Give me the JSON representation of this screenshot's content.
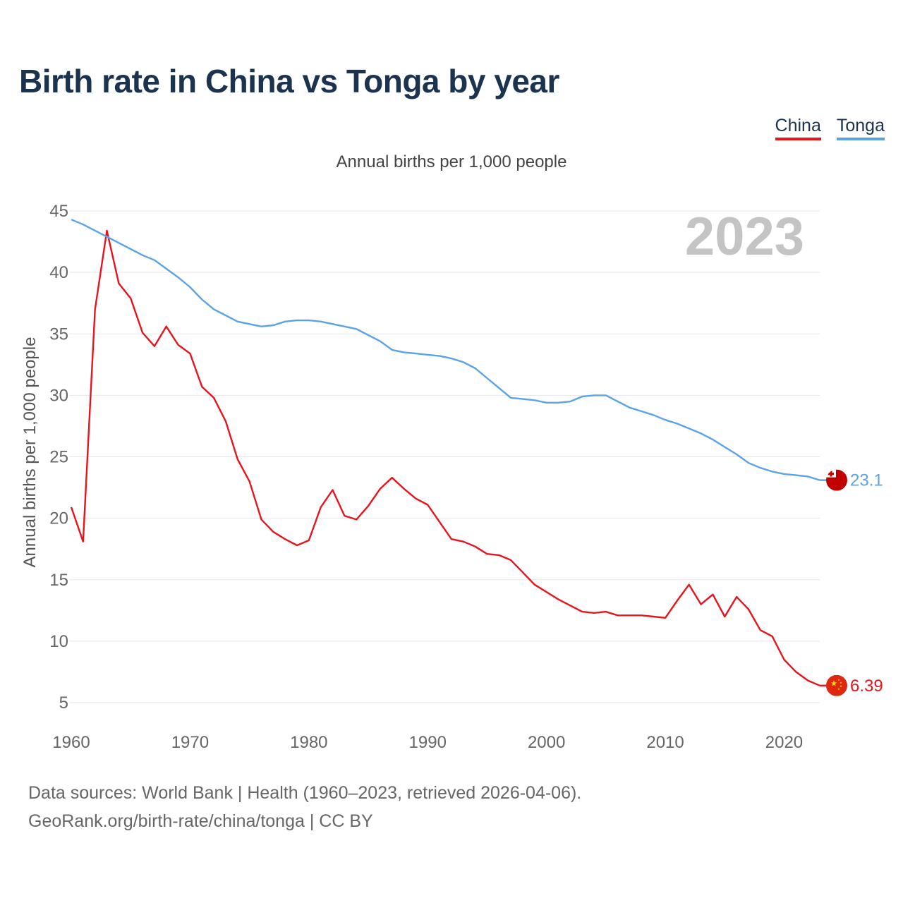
{
  "title": "Birth rate in China vs Tonga by year",
  "subtitle": "Annual births per 1,000 people",
  "legend": [
    {
      "name": "China",
      "color": "#e8141d"
    },
    {
      "name": "Tonga",
      "color": "#5ba3e6"
    }
  ],
  "source": {
    "line1": "Data sources: World Bank | Health (1960–2023, retrieved 2026-04-06).",
    "line2": "GeoRank.org/birth-rate/china/tonga | CC BY"
  },
  "chart_data": {
    "type": "line",
    "title": "Birth rate in China vs Tonga by year",
    "ylabel": "Annual births per 1,000 people",
    "xlabel": "",
    "year_label": "2023",
    "x_ticks": [
      1960,
      1970,
      1980,
      1990,
      2000,
      2010,
      2020
    ],
    "y_ticks": [
      5,
      10,
      15,
      20,
      25,
      30,
      35,
      40,
      45
    ],
    "xlim": [
      1960,
      2023
    ],
    "ylim": [
      5,
      45
    ],
    "grid": true,
    "x": [
      1960,
      1961,
      1962,
      1963,
      1964,
      1965,
      1966,
      1967,
      1968,
      1969,
      1970,
      1971,
      1972,
      1973,
      1974,
      1975,
      1976,
      1977,
      1978,
      1979,
      1980,
      1981,
      1982,
      1983,
      1984,
      1985,
      1986,
      1987,
      1988,
      1989,
      1990,
      1991,
      1992,
      1993,
      1994,
      1995,
      1996,
      1997,
      1998,
      1999,
      2000,
      2001,
      2002,
      2003,
      2004,
      2005,
      2006,
      2007,
      2008,
      2009,
      2010,
      2011,
      2012,
      2013,
      2014,
      2015,
      2016,
      2017,
      2018,
      2019,
      2020,
      2021,
      2022,
      2023
    ],
    "series": [
      {
        "name": "China",
        "color": "#e8141d",
        "end_label": "6.39",
        "flag": "china-flag",
        "values": [
          20.9,
          18.1,
          37.0,
          43.4,
          39.1,
          37.9,
          35.1,
          34.0,
          35.6,
          34.1,
          33.4,
          30.7,
          29.8,
          27.9,
          24.8,
          23.0,
          19.9,
          18.9,
          18.3,
          17.8,
          18.2,
          20.9,
          22.3,
          20.2,
          19.9,
          21.0,
          22.4,
          23.3,
          22.4,
          21.6,
          21.1,
          19.7,
          18.3,
          18.1,
          17.7,
          17.1,
          17.0,
          16.6,
          15.6,
          14.6,
          14.0,
          13.4,
          12.9,
          12.4,
          12.3,
          12.4,
          12.1,
          12.1,
          12.1,
          12.0,
          11.9,
          13.3,
          14.6,
          13.0,
          13.8,
          12.0,
          13.6,
          12.6,
          10.9,
          10.4,
          8.5,
          7.5,
          6.8,
          6.39
        ]
      },
      {
        "name": "Tonga",
        "color": "#5ba3e6",
        "end_label": "23.1",
        "flag": "tonga-flag",
        "values": [
          44.3,
          43.9,
          43.4,
          42.9,
          42.4,
          41.9,
          41.4,
          41.0,
          40.3,
          39.6,
          38.8,
          37.8,
          37.0,
          36.5,
          36.0,
          35.8,
          35.6,
          35.7,
          36.0,
          36.1,
          36.1,
          36.0,
          35.8,
          35.6,
          35.4,
          34.9,
          34.4,
          33.7,
          33.5,
          33.4,
          33.3,
          33.2,
          33.0,
          32.7,
          32.2,
          31.4,
          30.6,
          29.8,
          29.7,
          29.6,
          29.4,
          29.4,
          29.5,
          29.9,
          30.0,
          30.0,
          29.5,
          29.0,
          28.7,
          28.4,
          28.0,
          27.7,
          27.3,
          26.9,
          26.4,
          25.8,
          25.2,
          24.5,
          24.1,
          23.8,
          23.6,
          23.5,
          23.4,
          23.1
        ]
      }
    ]
  }
}
